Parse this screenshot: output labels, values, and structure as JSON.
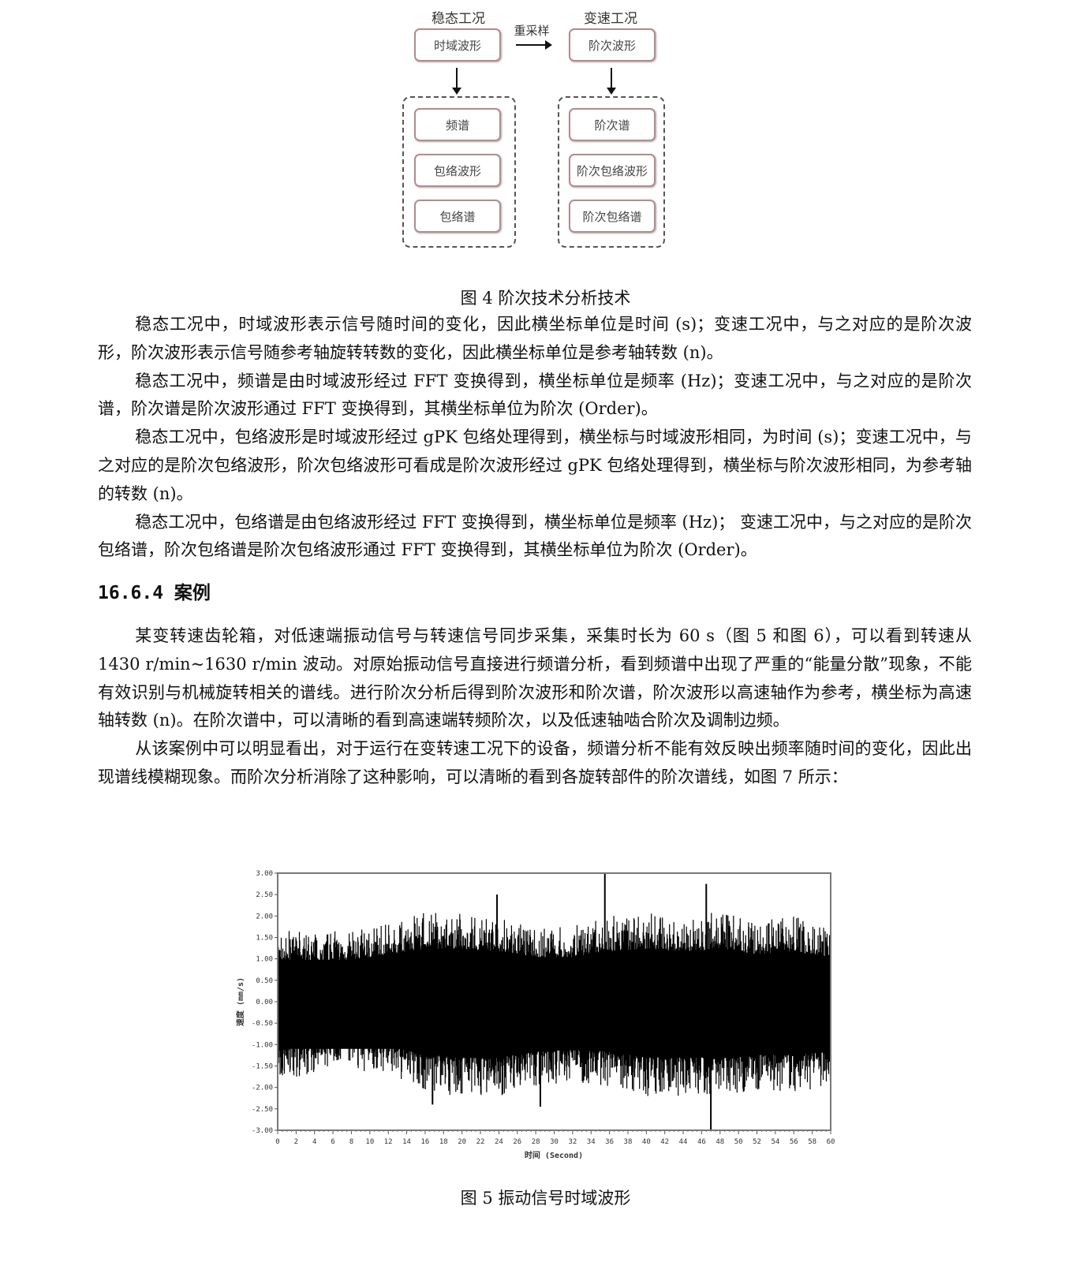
{
  "diagram": {
    "left_header": "稳态工况",
    "right_header": "变速工况",
    "arrow_label": "重采样",
    "left_top": "时域波形",
    "right_top": "阶次波形",
    "left_items": [
      "频谱",
      "包络波形",
      "包络谱"
    ],
    "right_items": [
      "阶次谱",
      "阶次包络波形",
      "阶次包络谱"
    ]
  },
  "figure4_caption": "图 4  阶次技术分析技术",
  "paragraphs1": [
    "稳态工况中，时域波形表示信号随时间的变化，因此横坐标单位是时间 (s)；变速工况中，与之对应的是阶次波形，阶次波形表示信号随参考轴旋转转数的变化，因此横坐标单位是参考轴转数 (n)。",
    "稳态工况中，频谱是由时域波形经过 FFT 变换得到，横坐标单位是频率 (Hz)；变速工况中，与之对应的是阶次谱，阶次谱是阶次波形通过 FFT 变换得到，其横坐标单位为阶次 (Order)。",
    "稳态工况中，包络波形是时域波形经过 gPK 包络处理得到，横坐标与时域波形相同，为时间 (s)；变速工况中，与之对应的是阶次包络波形，阶次包络波形可看成是阶次波形经过 gPK 包络处理得到，横坐标与阶次波形相同，为参考轴的转数 (n)。",
    "稳态工况中，包络谱是由包络波形经过 FFT 变换得到，横坐标单位是频率 (Hz)；  变速工况中，与之对应的是阶次包络谱，阶次包络谱是阶次包络波形通过 FFT 变换得到，其横坐标单位为阶次 (Order)。"
  ],
  "section_heading": "16.6.4 案例",
  "paragraphs2": [
    "某变转速齿轮箱，对低速端振动信号与转速信号同步采集，采集时长为 60 s（图 5 和图 6），可以看到转速从 1430 r/min~1630 r/min 波动。对原始振动信号直接进行频谱分析，看到频谱中出现了严重的“能量分散”现象，不能有效识别与机械旋转相关的谱线。进行阶次分析后得到阶次波形和阶次谱，阶次波形以高速轴作为参考，横坐标为高速轴转数 (n)。在阶次谱中，可以清晰的看到高速端转频阶次，以及低速轴啮合阶次及调制边频。",
    "从该案例中可以明显看出，对于运行在变转速工况下的设备，频谱分析不能有效反映出频率随时间的变化，因此出现谱线模糊现象。而阶次分析消除了这种影响，可以清晰的看到各旋转部件的阶次谱线，如图 7 所示："
  ],
  "chart_data": {
    "type": "line",
    "xlabel": "时间 (Second)",
    "ylabel": "速度 (mm/s)",
    "xlim": [
      0,
      60
    ],
    "ylim": [
      -3.0,
      3.0
    ],
    "xticks": [
      "0",
      "2",
      "4",
      "6",
      "8",
      "10",
      "12",
      "14",
      "16",
      "18",
      "20",
      "22",
      "24",
      "26",
      "28",
      "30",
      "32",
      "34",
      "36",
      "38",
      "40",
      "42",
      "44",
      "46",
      "48",
      "50",
      "52",
      "54",
      "56",
      "58",
      "60"
    ],
    "yticks": [
      "3.00",
      "2.50",
      "2.00",
      "1.50",
      "1.00",
      "0.50",
      "0.00",
      "-0.50",
      "-1.00",
      "-1.50",
      "-2.00",
      "-2.50",
      "-3.00"
    ],
    "grid": false,
    "envelope_x": [
      0,
      4,
      8,
      12,
      16,
      20,
      24,
      28,
      32,
      36,
      40,
      44,
      48,
      52,
      56,
      60
    ],
    "envelope_upper": [
      1.5,
      1.5,
      1.5,
      1.7,
      1.9,
      1.9,
      1.8,
      1.6,
      1.6,
      1.8,
      1.9,
      1.8,
      1.9,
      1.7,
      1.8,
      1.6
    ],
    "envelope_lower": [
      -1.7,
      -1.5,
      -1.4,
      -1.6,
      -1.9,
      -2.0,
      -2.0,
      -1.8,
      -1.7,
      -1.8,
      -2.0,
      -2.0,
      -2.0,
      -1.9,
      -1.9,
      -1.8
    ],
    "peaks": [
      {
        "x": 35.5,
        "y": 3.0
      },
      {
        "x": 46.5,
        "y": 2.75
      },
      {
        "x": 23.8,
        "y": 2.5
      },
      {
        "x": 47.0,
        "y": -3.0
      },
      {
        "x": 28.5,
        "y": -2.45
      },
      {
        "x": 16.8,
        "y": -2.4
      }
    ],
    "color": "#000000"
  },
  "figure5_caption": "图 5  振动信号时域波形"
}
